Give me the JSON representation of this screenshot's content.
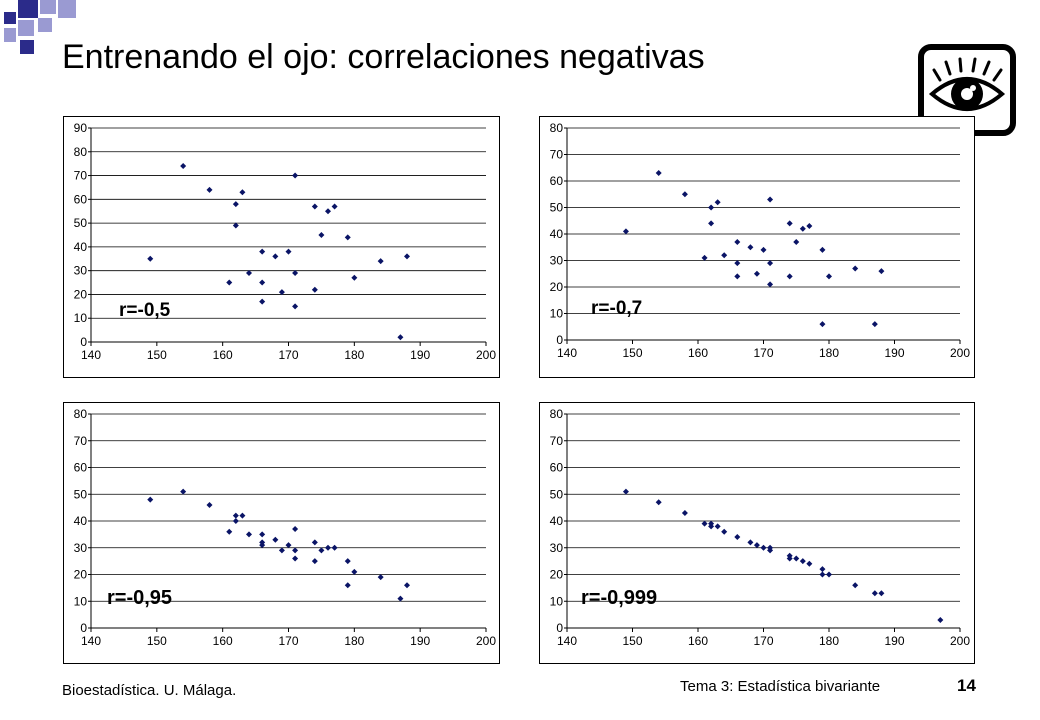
{
  "slide": {
    "title": "Entrenando el ojo: correlaciones negativas",
    "footer_left": "Bioestadística. U. Málaga.",
    "footer_right": "Tema 3: Estadística bivariante",
    "page_number": "14"
  },
  "colors": {
    "points": "#0a1466",
    "logo_dark": "#2b2b8a",
    "logo_light": "#9a9ad2",
    "frame": "#000000"
  },
  "icons": [
    "slide-logo-icon",
    "eye-icon"
  ],
  "chart_data": [
    {
      "type": "scatter",
      "annotation": "r=-0,5",
      "xlim": [
        140,
        200
      ],
      "ylim": [
        0,
        90
      ],
      "x_ticks": [
        140,
        150,
        160,
        170,
        180,
        190,
        200
      ],
      "y_ticks": [
        0,
        10,
        20,
        30,
        40,
        50,
        60,
        70,
        80,
        90
      ],
      "grid": "horizontal",
      "points": [
        [
          149,
          35
        ],
        [
          154,
          74
        ],
        [
          158,
          64
        ],
        [
          161,
          25
        ],
        [
          162,
          58
        ],
        [
          162,
          49
        ],
        [
          163,
          63
        ],
        [
          164,
          29
        ],
        [
          166,
          38
        ],
        [
          166,
          25
        ],
        [
          166,
          17
        ],
        [
          168,
          36
        ],
        [
          169,
          21
        ],
        [
          170,
          38
        ],
        [
          171,
          70
        ],
        [
          171,
          29
        ],
        [
          171,
          15
        ],
        [
          174,
          57
        ],
        [
          174,
          22
        ],
        [
          175,
          45
        ],
        [
          176,
          55
        ],
        [
          177,
          57
        ],
        [
          179,
          44
        ],
        [
          180,
          27
        ],
        [
          184,
          34
        ],
        [
          187,
          2
        ],
        [
          188,
          36
        ]
      ]
    },
    {
      "type": "scatter",
      "annotation": "r=-0,7",
      "xlim": [
        140,
        200
      ],
      "ylim": [
        0,
        80
      ],
      "x_ticks": [
        140,
        150,
        160,
        170,
        180,
        190,
        200
      ],
      "y_ticks": [
        0,
        10,
        20,
        30,
        40,
        50,
        60,
        70,
        80
      ],
      "grid": "horizontal",
      "points": [
        [
          149,
          41
        ],
        [
          154,
          63
        ],
        [
          158,
          55
        ],
        [
          161,
          31
        ],
        [
          162,
          50
        ],
        [
          162,
          44
        ],
        [
          163,
          52
        ],
        [
          164,
          32
        ],
        [
          166,
          37
        ],
        [
          166,
          29
        ],
        [
          166,
          24
        ],
        [
          168,
          35
        ],
        [
          169,
          25
        ],
        [
          170,
          34
        ],
        [
          171,
          53
        ],
        [
          171,
          29
        ],
        [
          171,
          21
        ],
        [
          174,
          44
        ],
        [
          174,
          24
        ],
        [
          175,
          37
        ],
        [
          176,
          42
        ],
        [
          177,
          43
        ],
        [
          179,
          34
        ],
        [
          179,
          6
        ],
        [
          180,
          24
        ],
        [
          184,
          27
        ],
        [
          187,
          6
        ],
        [
          188,
          26
        ]
      ]
    },
    {
      "type": "scatter",
      "annotation": "r=-0,95",
      "xlim": [
        140,
        200
      ],
      "ylim": [
        0,
        80
      ],
      "x_ticks": [
        140,
        150,
        160,
        170,
        180,
        190,
        200
      ],
      "y_ticks": [
        0,
        10,
        20,
        30,
        40,
        50,
        60,
        70,
        80
      ],
      "grid": "horizontal",
      "points": [
        [
          149,
          48
        ],
        [
          154,
          51
        ],
        [
          158,
          46
        ],
        [
          161,
          36
        ],
        [
          162,
          42
        ],
        [
          162,
          40
        ],
        [
          163,
          42
        ],
        [
          164,
          35
        ],
        [
          166,
          35
        ],
        [
          166,
          32
        ],
        [
          166,
          31
        ],
        [
          168,
          33
        ],
        [
          169,
          29
        ],
        [
          170,
          31
        ],
        [
          171,
          37
        ],
        [
          171,
          29
        ],
        [
          171,
          26
        ],
        [
          174,
          32
        ],
        [
          174,
          25
        ],
        [
          175,
          29
        ],
        [
          176,
          30
        ],
        [
          177,
          30
        ],
        [
          179,
          25
        ],
        [
          179,
          16
        ],
        [
          180,
          21
        ],
        [
          184,
          19
        ],
        [
          187,
          11
        ],
        [
          188,
          16
        ]
      ]
    },
    {
      "type": "scatter",
      "annotation": "r=-0,999",
      "xlim": [
        140,
        200
      ],
      "ylim": [
        0,
        80
      ],
      "x_ticks": [
        140,
        150,
        160,
        170,
        180,
        190,
        200
      ],
      "y_ticks": [
        0,
        10,
        20,
        30,
        40,
        50,
        60,
        70,
        80
      ],
      "grid": "horizontal",
      "points": [
        [
          149,
          51
        ],
        [
          154,
          47
        ],
        [
          158,
          43
        ],
        [
          161,
          39
        ],
        [
          162,
          39
        ],
        [
          162,
          38
        ],
        [
          163,
          38
        ],
        [
          164,
          36
        ],
        [
          166,
          34
        ],
        [
          168,
          32
        ],
        [
          169,
          31
        ],
        [
          170,
          30
        ],
        [
          171,
          30
        ],
        [
          171,
          29
        ],
        [
          174,
          27
        ],
        [
          174,
          26
        ],
        [
          175,
          26
        ],
        [
          176,
          25
        ],
        [
          177,
          24
        ],
        [
          179,
          22
        ],
        [
          179,
          20
        ],
        [
          180,
          20
        ],
        [
          184,
          16
        ],
        [
          187,
          13
        ],
        [
          188,
          13
        ],
        [
          197,
          3
        ]
      ]
    }
  ]
}
